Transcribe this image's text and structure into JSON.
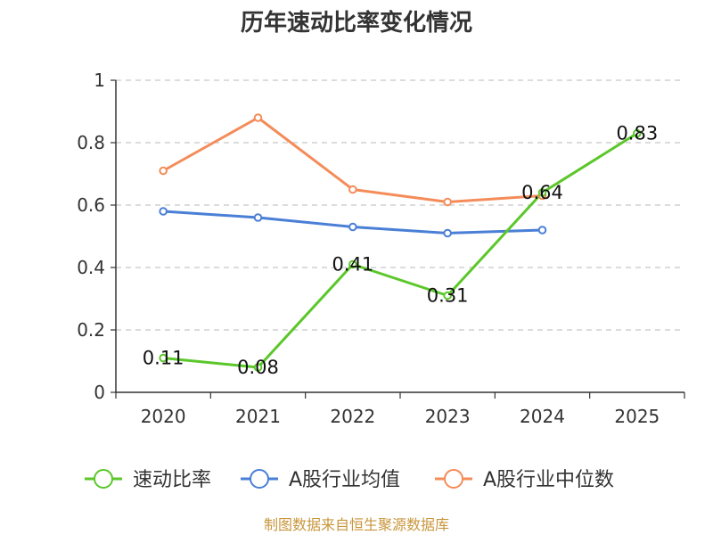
{
  "chart_data": {
    "type": "line",
    "title": "历年速动比率变化情况",
    "categories": [
      "2020",
      "2021",
      "2022",
      "2023",
      "2024",
      "2025"
    ],
    "ylim": [
      0,
      1
    ],
    "yticks": [
      "0",
      "0.2",
      "0.4",
      "0.6",
      "0.8",
      "1"
    ],
    "ytick_values": [
      0,
      0.2,
      0.4,
      0.6,
      0.8,
      1
    ],
    "grid": true,
    "legend_position": "bottom",
    "series": [
      {
        "name": "速动比率",
        "color": "#5bc72a",
        "values": [
          0.11,
          0.08,
          0.41,
          0.31,
          0.64,
          0.83
        ],
        "labels": [
          "0.11",
          "0.08",
          "0.41",
          "0.31",
          "0.64",
          "0.83"
        ]
      },
      {
        "name": "A股行业均值",
        "color": "#4a7fd6",
        "values": [
          0.58,
          0.56,
          0.53,
          0.51,
          0.52,
          null
        ]
      },
      {
        "name": "A股行业中位数",
        "color": "#f48c5a",
        "values": [
          0.71,
          0.88,
          0.65,
          0.61,
          0.63,
          null
        ]
      }
    ]
  },
  "source": "制图数据来自恒生聚源数据库"
}
